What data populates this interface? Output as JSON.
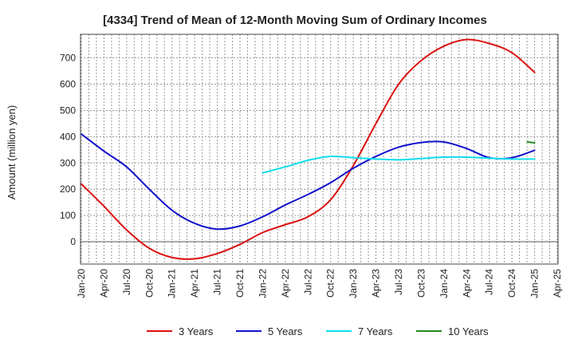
{
  "chart_data": {
    "type": "line",
    "title": "[4334]  Trend of Mean of 12-Month Moving Sum of Ordinary Incomes",
    "xlabel": "",
    "ylabel": "Amount (million yen)",
    "ylim": [
      -85,
      790
    ],
    "yticks": [
      0,
      100,
      200,
      300,
      400,
      500,
      600,
      700
    ],
    "categories": [
      "Jan-20",
      "Apr-20",
      "Jul-20",
      "Oct-20",
      "Jan-21",
      "Apr-21",
      "Jul-21",
      "Oct-21",
      "Jan-22",
      "Apr-22",
      "Jul-22",
      "Oct-22",
      "Jan-23",
      "Apr-23",
      "Jul-23",
      "Oct-23",
      "Jan-24",
      "Apr-24",
      "Jul-24",
      "Oct-24",
      "Jan-25",
      "Apr-25"
    ],
    "grid": true,
    "legend_position": "bottom",
    "series": [
      {
        "name": "3 Years",
        "color": "#dd1111",
        "values": [
          220,
          135,
          45,
          -25,
          -60,
          -65,
          -45,
          -10,
          35,
          65,
          95,
          160,
          290,
          450,
          600,
          690,
          745,
          770,
          755,
          720,
          645,
          null
        ]
      },
      {
        "name": "5 Years",
        "color": "#1111cc",
        "values": [
          410,
          345,
          285,
          200,
          120,
          70,
          48,
          60,
          95,
          140,
          180,
          225,
          280,
          325,
          360,
          378,
          380,
          355,
          320,
          320,
          348,
          null
        ]
      },
      {
        "name": "7 Years",
        "color": "#11ddee",
        "values": [
          null,
          null,
          null,
          null,
          null,
          null,
          null,
          null,
          262,
          285,
          310,
          325,
          320,
          315,
          312,
          317,
          322,
          322,
          318,
          315,
          315,
          null
        ]
      },
      {
        "name": "10 Years",
        "color": "#228822",
        "values": [
          null,
          null,
          null,
          null,
          null,
          null,
          null,
          null,
          null,
          null,
          null,
          null,
          null,
          null,
          null,
          null,
          null,
          null,
          null,
          null,
          380,
          null
        ]
      }
    ]
  }
}
